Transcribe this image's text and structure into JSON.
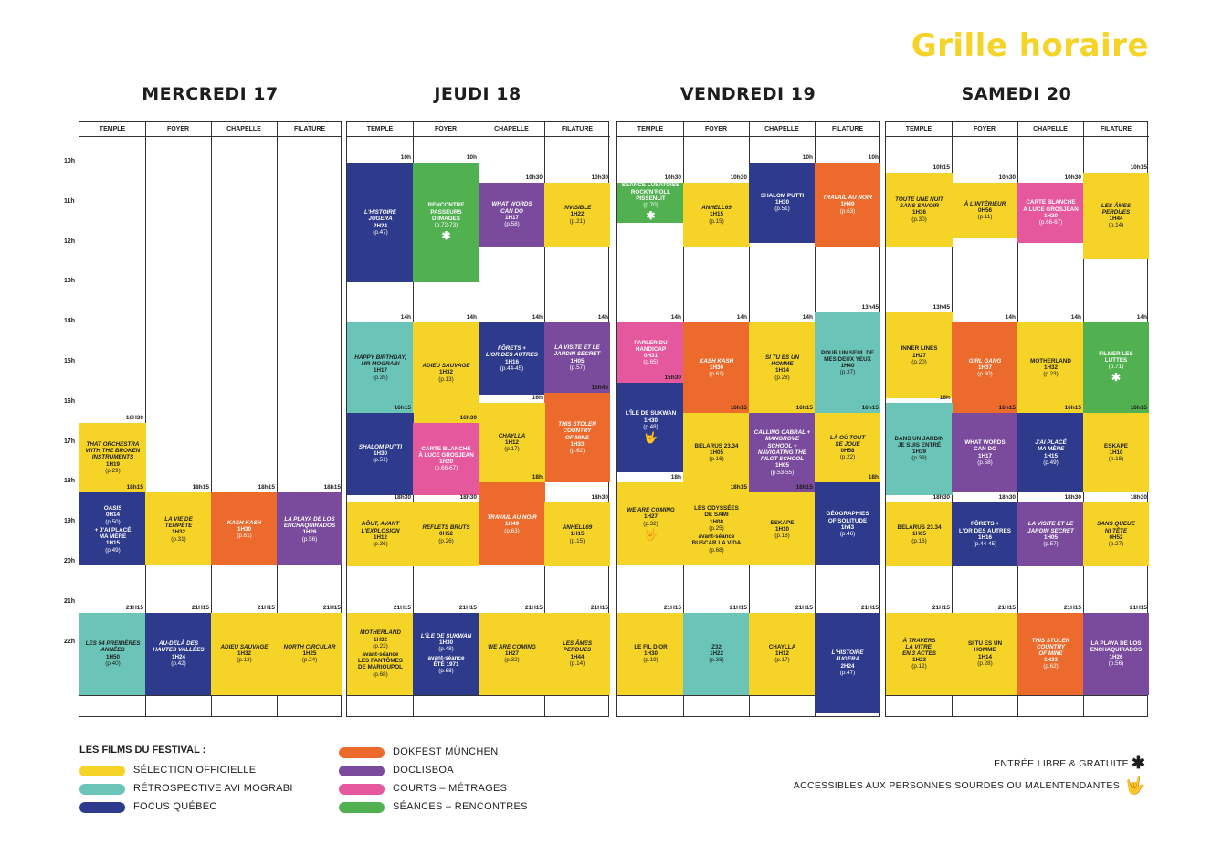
{
  "title": "Grille horaire",
  "colors": {
    "officielle": "#f5d327",
    "retrospective": "#6ac5b8",
    "quebec": "#2e3a8c",
    "dokfest": "#ec6a2c",
    "doclisboa": "#7a4b9c",
    "courts": "#e6589d",
    "rencontres": "#51b050"
  },
  "hours": [
    "10h",
    "11h",
    "12h",
    "13h",
    "14h",
    "15h",
    "16h",
    "17h",
    "18h",
    "19h",
    "20h",
    "21h",
    "22h"
  ],
  "venues": [
    "TEMPLE",
    "FOYER",
    "CHAPELLE",
    "FILATURE"
  ],
  "days": [
    {
      "name": "MERCREDI 17",
      "events": [
        {
          "col": 0,
          "start": 16.5,
          "end": 18.25,
          "label": "16H30",
          "cat": "officielle",
          "title": "THAT ORCHESTRA\nWITH THE BROKEN\nINSTRUMENTS",
          "dur": "1H19",
          "page": "(p.29)"
        },
        {
          "col": 0,
          "start": 18.25,
          "end": 20.08,
          "label": "18h15",
          "cat": "quebec",
          "title": "OASIS",
          "dur": "0H14",
          "page": "(p.50)",
          "extra": "+ J'AI PLACÉ\nMA MÈRE",
          "dur2": "1H15",
          "page2": "(p.49)"
        },
        {
          "col": 1,
          "start": 18.25,
          "end": 20.08,
          "label": "18h15",
          "cat": "officielle",
          "title": "LA VIE DE\nTEMPÊTE",
          "dur": "1H32",
          "page": "(p.31)"
        },
        {
          "col": 2,
          "start": 18.25,
          "end": 20.08,
          "label": "18h15",
          "cat": "dokfest",
          "title": "KASH KASH",
          "dur": "1H30",
          "page": "(p.61)"
        },
        {
          "col": 3,
          "start": 18.25,
          "end": 20.08,
          "label": "18h15",
          "cat": "doclisboa",
          "title": "LA PLAYA DE LOS\nENCHAQUIRADOS",
          "dur": "1H26",
          "page": "(p.56)"
        },
        {
          "col": 0,
          "start": 21.25,
          "end": 23.3,
          "label": "21H15",
          "cat": "retrospective",
          "title": "LES 54 PREMIÈRES\nANNÉES",
          "dur": "1H50",
          "page": "(p.40)"
        },
        {
          "col": 1,
          "start": 21.25,
          "end": 23.3,
          "label": "21H15",
          "cat": "quebec",
          "title": "AU-DELÀ DES\nHAUTES VALLÉES",
          "dur": "1H24",
          "page": "(p.42)"
        },
        {
          "col": 2,
          "start": 21.25,
          "end": 23.3,
          "label": "21H15",
          "cat": "officielle",
          "title": "ADIEU SAUVAGE",
          "dur": "1H32",
          "page": "(p.13)"
        },
        {
          "col": 3,
          "start": 21.25,
          "end": 23.3,
          "label": "21H15",
          "cat": "officielle",
          "title": "NORTH CIRCULAR",
          "dur": "1H25",
          "page": "(p.24)"
        }
      ]
    },
    {
      "name": "JEUDI 18",
      "events": [
        {
          "col": 0,
          "start": 10,
          "end": 13,
          "label": "10h",
          "cat": "quebec",
          "title": "L'HISTOIRE\nJUGERA",
          "dur": "2H24",
          "page": "(p.47)"
        },
        {
          "col": 1,
          "start": 10,
          "end": 13,
          "label": "10h",
          "cat": "rencontres",
          "title": "RENCONTRE\nPASSEURS\nD'IMAGES",
          "dur": "",
          "page": "(p.72-73)",
          "sym": "✱",
          "upright": true
        },
        {
          "col": 2,
          "start": 10.5,
          "end": 12.1,
          "label": "10h30",
          "cat": "doclisboa",
          "title": "WHAT WORDS\nCAN DO",
          "dur": "1H17",
          "page": "(p.58)"
        },
        {
          "col": 3,
          "start": 10.5,
          "end": 12.1,
          "label": "10h30",
          "cat": "officielle",
          "title": "INVISIBLE",
          "dur": "1H22",
          "page": "(p.21)"
        },
        {
          "col": 0,
          "start": 14,
          "end": 16.25,
          "label": "14h",
          "cat": "retrospective",
          "title": "HAPPY BIRTHDAY,\nMR MOGRABI",
          "dur": "1H17",
          "page": "(p.35)"
        },
        {
          "col": 1,
          "start": 14,
          "end": 16.5,
          "label": "14h",
          "cat": "officielle",
          "title": "ADIEU SAUVAGE",
          "dur": "1H32",
          "page": "(p.13)"
        },
        {
          "col": 2,
          "start": 14,
          "end": 15.8,
          "label": "14h",
          "cat": "quebec",
          "title": "FÔRETS +\nL'OR DES AUTRES",
          "dur": "1H16",
          "page": "(p.44-45)"
        },
        {
          "col": 3,
          "start": 14,
          "end": 15.75,
          "label": "14h",
          "cat": "doclisboa",
          "title": "LA VISITE ET LE\nJARDIN SECRET",
          "dur": "1H05",
          "page": "(p.57)"
        },
        {
          "col": 3,
          "start": 15.75,
          "end": 18,
          "label": "15h45",
          "cat": "dokfest",
          "title": "THIS STOLEN\nCOUNTRY\nOF MINE",
          "dur": "1H33",
          "page": "(p.62)"
        },
        {
          "col": 2,
          "start": 16,
          "end": 18,
          "label": "16h",
          "cat": "officielle",
          "title": "CHAYLLA",
          "dur": "1H12",
          "page": "(p.17)"
        },
        {
          "col": 0,
          "start": 16.25,
          "end": 18.3,
          "label": "16h15",
          "cat": "quebec",
          "title": "SHALOM PUTTI",
          "dur": "1H30",
          "page": "(p.51)"
        },
        {
          "col": 1,
          "start": 16.5,
          "end": 18.3,
          "label": "16h30",
          "cat": "courts",
          "title": "CARTE BLANCHE\nÀ LUCE GROSJEAN",
          "dur": "1H20",
          "page": "(p.66-67)",
          "upright": true
        },
        {
          "col": 2,
          "start": 18,
          "end": 20.08,
          "label": "18h",
          "cat": "dokfest",
          "title": "TRAVAIL AU NOIR",
          "dur": "1H49",
          "page": "(p.63)"
        },
        {
          "col": 0,
          "start": 18.5,
          "end": 20.08,
          "label": "18h30",
          "cat": "officielle",
          "title": "AÔUT, AVANT\nL'EXPLOSION",
          "dur": "1H12",
          "page": "(p.36)"
        },
        {
          "col": 1,
          "start": 18.5,
          "end": 20.08,
          "label": "18h30",
          "cat": "officielle",
          "title": "REFLETS BRUTS",
          "dur": "0H52",
          "page": "(p.26)"
        },
        {
          "col": 3,
          "start": 18.5,
          "end": 20.08,
          "label": "18h30",
          "cat": "officielle",
          "title": "ANHELL69",
          "dur": "1H15",
          "page": "(p.15)"
        },
        {
          "col": 0,
          "start": 21.25,
          "end": 23.3,
          "label": "21H15",
          "cat": "officielle",
          "title": "MOTHERLAND",
          "dur": "1H32",
          "page": "(p.23)",
          "extra": "avant-séance\nLES FANTÔMES\nDE MARIOUPOL",
          "page2": "(p.68)"
        },
        {
          "col": 1,
          "start": 21.25,
          "end": 23.3,
          "label": "21H15",
          "cat": "quebec",
          "title": "L'ÎLE DE SUKWAN",
          "dur": "1H30",
          "page": "(p.48)",
          "extra": "avant-séance\nÉTÉ 1971",
          "page2": "(p.68)"
        },
        {
          "col": 2,
          "start": 21.25,
          "end": 23.3,
          "label": "21H15",
          "cat": "officielle",
          "title": "WE ARE COMING",
          "dur": "1H27",
          "page": "(p.32)"
        },
        {
          "col": 3,
          "start": 21.25,
          "end": 23.3,
          "label": "21H15",
          "cat": "officielle",
          "title": "LES ÂMES\nPERDUES",
          "dur": "1H44",
          "page": "(p.14)"
        }
      ]
    },
    {
      "name": "VENDREDI 19",
      "events": [
        {
          "col": 0,
          "start": 10.5,
          "end": 11.5,
          "label": "10h30",
          "cat": "rencontres",
          "title": "séance Lusatoise\nROCK'N'ROLL\nPISSENLIT",
          "dur": "",
          "page": "(p.70)",
          "sym": "✱",
          "upright": true
        },
        {
          "col": 1,
          "start": 10.5,
          "end": 12.1,
          "label": "10h30",
          "cat": "officielle",
          "title": "ANHELL69",
          "dur": "1H15",
          "page": "(p.15)"
        },
        {
          "col": 2,
          "start": 10,
          "end": 12,
          "label": "10h",
          "cat": "quebec",
          "title": "SHALOM PUTTI",
          "dur": "1H30",
          "page": "(p.51)",
          "upright": true
        },
        {
          "col": 3,
          "start": 10,
          "end": 12.1,
          "label": "10h",
          "cat": "dokfest",
          "title": "TRAVAIL AU NOIR",
          "dur": "1H49",
          "page": "(p.63)"
        },
        {
          "col": 0,
          "start": 14,
          "end": 15.5,
          "label": "14h",
          "cat": "courts",
          "title": "PARLER DU\nHANDICAP",
          "dur": "0H31",
          "page": "(p.65)",
          "upright": true
        },
        {
          "col": 0,
          "start": 15.5,
          "end": 17.75,
          "label": "15h30",
          "cat": "quebec",
          "title": "L'ÎLE DE SUKWAN",
          "dur": "1H30",
          "page": "(p.48)",
          "sym": "🤟",
          "upright": true
        },
        {
          "col": 1,
          "start": 14,
          "end": 16.25,
          "label": "14h",
          "cat": "dokfest",
          "title": "KASH KASH",
          "dur": "1H30",
          "page": "(p.61)"
        },
        {
          "col": 2,
          "start": 14,
          "end": 16.25,
          "label": "14h",
          "cat": "officielle",
          "title": "SI TU ES UN\nHOMME",
          "dur": "1H14",
          "page": "(p.28)"
        },
        {
          "col": 3,
          "start": 13.75,
          "end": 16.25,
          "label": "13h45",
          "cat": "retrospective",
          "title": "POUR UN SEUL DE\nMES DEUX YEUX",
          "dur": "1H40",
          "page": "(p.37)",
          "upright": true
        },
        {
          "col": 1,
          "start": 16.25,
          "end": 18.25,
          "label": "16h15",
          "cat": "officielle",
          "title": "BELARUS 23.34",
          "dur": "1H05",
          "page": "(p.16)",
          "upright": true
        },
        {
          "col": 2,
          "start": 16.25,
          "end": 18.25,
          "label": "16h15",
          "cat": "doclisboa",
          "title": "CALLING CABRAL +\nMANGROVE\nSCHOOL +\nNAVIGATING THE\nPILOT SCHOOL",
          "dur": "1H05",
          "page": "(p.53-55)"
        },
        {
          "col": 3,
          "start": 16.25,
          "end": 18,
          "label": "16h15",
          "cat": "officielle",
          "title": "LÀ OÙ TOUT\nSE JOUE",
          "dur": "0H58",
          "page": "(p.22)"
        },
        {
          "col": 0,
          "start": 18,
          "end": 20.08,
          "label": "18h",
          "cat": "officielle",
          "title": "WE ARE COMING",
          "dur": "1H27",
          "page": "(p.32)",
          "sym": "🤟"
        },
        {
          "col": 1,
          "start": 18.25,
          "end": 20.08,
          "label": "18h15",
          "cat": "officielle",
          "title": "LES ODYSSÉES\nDE SAMI",
          "dur": "1H08",
          "page": "(p.25)",
          "extra": "avant-séance\nBUSCAR LA VIDA",
          "page2": "(p.68)",
          "upright": true
        },
        {
          "col": 2,
          "start": 18.25,
          "end": 20.08,
          "label": "18h15",
          "cat": "officielle",
          "title": "ESKAPE",
          "dur": "1H10",
          "page": "(p.18)",
          "upright": true
        },
        {
          "col": 3,
          "start": 18,
          "end": 20.08,
          "label": "18h",
          "cat": "quebec",
          "title": "GÉOGRAPHIES\nOF SOLITUDE",
          "dur": "1h43",
          "page": "(p.46)",
          "upright": true
        },
        {
          "col": 0,
          "start": 21.25,
          "end": 23.3,
          "label": "21H15",
          "cat": "officielle",
          "title": "LE FIL D'OR",
          "dur": "1H30",
          "page": "(p.19)",
          "upright": true
        },
        {
          "col": 1,
          "start": 21.25,
          "end": 23.3,
          "label": "21H15",
          "cat": "retrospective",
          "title": "Z32",
          "dur": "1H22",
          "page": "(p.38)",
          "upright": true
        },
        {
          "col": 2,
          "start": 21.25,
          "end": 23.3,
          "label": "21H15",
          "cat": "officielle",
          "title": "CHAYLLA",
          "dur": "1H12",
          "page": "(p.17)",
          "upright": true
        },
        {
          "col": 3,
          "start": 21.25,
          "end": 23.75,
          "label": "21H15",
          "cat": "quebec",
          "title": "L'HISTOIRE\nJUGERA",
          "dur": "2H24",
          "page": "(p.47)"
        }
      ]
    },
    {
      "name": "SAMEDI 20",
      "events": [
        {
          "col": 0,
          "start": 10.25,
          "end": 12.1,
          "label": "10h15",
          "cat": "officielle",
          "title": "TOUTE UNE NUIT\nSANS SAVOIR",
          "dur": "1H36",
          "page": "(p.30)"
        },
        {
          "col": 1,
          "start": 10.5,
          "end": 11.9,
          "label": "10h30",
          "cat": "officielle",
          "title": "À L'INTÉRIEUR",
          "dur": "0H56",
          "page": "(p.11)"
        },
        {
          "col": 2,
          "start": 10.5,
          "end": 12,
          "label": "10h30",
          "cat": "courts",
          "title": "CARTE BLANCHE\nÀ LUCE GROSJEAN",
          "dur": "1H20",
          "page": "(p.66-67)",
          "upright": true
        },
        {
          "col": 3,
          "start": 10.25,
          "end": 12.4,
          "label": "10h15",
          "cat": "officielle",
          "title": "LES ÂMES\nPERDUES",
          "dur": "1H44",
          "page": "(p.14)"
        },
        {
          "col": 0,
          "start": 13.75,
          "end": 15.9,
          "label": "13h45",
          "cat": "officielle",
          "title": "INNER LINES",
          "dur": "1H27",
          "page": "(p.20)",
          "upright": true
        },
        {
          "col": 1,
          "start": 14,
          "end": 16.25,
          "label": "14h",
          "cat": "dokfest",
          "title": "GIRL GANG",
          "dur": "1H37",
          "page": "(p.60)"
        },
        {
          "col": 2,
          "start": 14,
          "end": 16.25,
          "label": "14h",
          "cat": "officielle",
          "title": "MOTHERLAND",
          "dur": "1H32",
          "page": "(p.23)",
          "upright": true
        },
        {
          "col": 3,
          "start": 14,
          "end": 16.25,
          "label": "14h",
          "cat": "rencontres",
          "title": "FILMER LES\nLUTTES",
          "dur": "",
          "page": "(p.71)",
          "sym": "✱",
          "upright": true
        },
        {
          "col": 0,
          "start": 16,
          "end": 18.3,
          "label": "16h",
          "cat": "retrospective",
          "title": "DANS UN JARDIN\nJE SUIS ENTRÉ",
          "dur": "1H39",
          "page": "(p.39)",
          "upright": true
        },
        {
          "col": 1,
          "start": 16.25,
          "end": 18.25,
          "label": "16h15",
          "cat": "doclisboa",
          "title": "WHAT WORDS\nCAN DO",
          "dur": "1H17",
          "page": "(p.58)",
          "upright": true
        },
        {
          "col": 2,
          "start": 16.25,
          "end": 18.25,
          "label": "16h15",
          "cat": "quebec",
          "title": "J'AI PLACÉ\nMA MÈRE",
          "dur": "1H15",
          "page": "(p.49)"
        },
        {
          "col": 3,
          "start": 16.25,
          "end": 18.25,
          "label": "16h15",
          "cat": "officielle",
          "title": "ESKAPE",
          "dur": "1H10",
          "page": "(p.18)",
          "upright": true
        },
        {
          "col": 0,
          "start": 18.5,
          "end": 20.08,
          "label": "18h30",
          "cat": "officielle",
          "title": "BELARUS 23.34",
          "dur": "1H05",
          "page": "(p.16)",
          "upright": true
        },
        {
          "col": 1,
          "start": 18.5,
          "end": 20.08,
          "label": "18h30",
          "cat": "quebec",
          "title": "FÔRETS +\nL'OR DES AUTRES",
          "dur": "1H16",
          "page": "(p.44-45)",
          "upright": true
        },
        {
          "col": 2,
          "start": 18.5,
          "end": 20.08,
          "label": "18h30",
          "cat": "doclisboa",
          "title": "LA VISITE ET LE\nJARDIN SECRET",
          "dur": "1H05",
          "page": "(p.57)"
        },
        {
          "col": 3,
          "start": 18.5,
          "end": 20.08,
          "label": "18h30",
          "cat": "officielle",
          "title": "SANS QUEUE\nNI TÊTE",
          "dur": "0H52",
          "page": "(p.27)"
        },
        {
          "col": 0,
          "start": 21.25,
          "end": 23.3,
          "label": "21H15",
          "cat": "officielle",
          "title": "À TRAVERS\nLA VITRE,\nEN 3 ACTES",
          "dur": "1H23",
          "page": "(p.12)"
        },
        {
          "col": 1,
          "start": 21.25,
          "end": 23.3,
          "label": "21H15",
          "cat": "officielle",
          "title": "SI TU ES UN\nHOMME",
          "dur": "1H14",
          "page": "(p.28)",
          "upright": true
        },
        {
          "col": 2,
          "start": 21.25,
          "end": 23.3,
          "label": "21H15",
          "cat": "dokfest",
          "title": "THIS STOLEN\nCOUNTRY\nOF MINE",
          "dur": "1H33",
          "page": "(p.62)"
        },
        {
          "col": 3,
          "start": 21.25,
          "end": 23.3,
          "label": "21H15",
          "cat": "doclisboa",
          "title": "LA PLAYA DE LOS\nENCHAQUIRADOS",
          "dur": "1H26",
          "page": "(p.56)",
          "upright": true
        }
      ]
    }
  ],
  "legend": {
    "title": "LES FILMS DU FESTIVAL :",
    "items": [
      {
        "cat": "officielle",
        "label": "SÉLECTION OFFICIELLE"
      },
      {
        "cat": "retrospective",
        "label": "RÉTROSPECTIVE AVI MOGRABI"
      },
      {
        "cat": "quebec",
        "label": "FOCUS QUÉBEC"
      },
      {
        "cat": "dokfest",
        "label": "DOKFEST MÜNCHEN"
      },
      {
        "cat": "doclisboa",
        "label": "DOCLISBOA"
      },
      {
        "cat": "courts",
        "label": "COURTS – MÉTRAGES"
      },
      {
        "cat": "rencontres",
        "label": "SÉANCES – RENCONTRES"
      }
    ],
    "free": "ENTRÉE LIBRE & GRATUITE",
    "free_icon": "asterisk-icon",
    "deaf": "ACCESSIBLES AUX PERSONNES SOURDES OU MALENTENDANTES",
    "deaf_icon": "sign-language-icon"
  }
}
